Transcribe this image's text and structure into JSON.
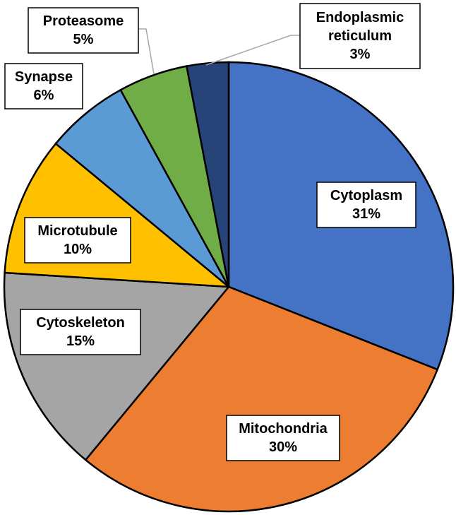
{
  "chart_data": {
    "type": "pie",
    "title": "",
    "start_angle_deg": 0,
    "direction": "clockwise",
    "slices": [
      {
        "name": "Cytoplasm",
        "value": 31,
        "label": "31%",
        "color": "#4472c4"
      },
      {
        "name": "Mitochondria",
        "value": 30,
        "label": "30%",
        "color": "#ed7d31"
      },
      {
        "name": "Cytoskeleton",
        "value": 15,
        "label": "15%",
        "color": "#a5a5a5"
      },
      {
        "name": "Microtubule",
        "value": 10,
        "label": "10%",
        "color": "#ffc000"
      },
      {
        "name": "Synapse",
        "value": 6,
        "label": "6%",
        "color": "#5b9bd5"
      },
      {
        "name": "Proteasome",
        "value": 5,
        "label": "5%",
        "color": "#70ad47"
      },
      {
        "name": "Endoplasmic reticulum",
        "value": 3,
        "label": "3%",
        "color": "#264478"
      }
    ]
  }
}
